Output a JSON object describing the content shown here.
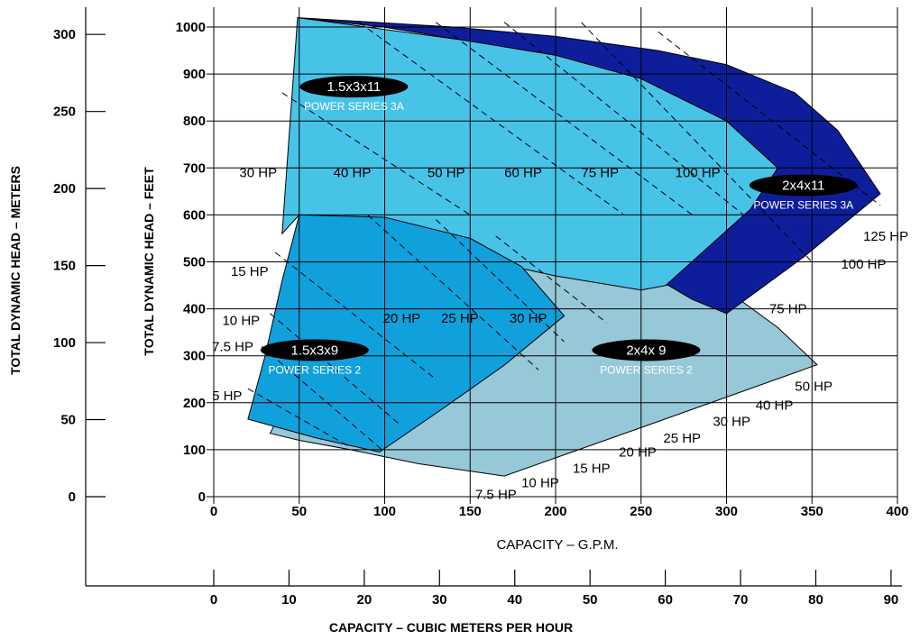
{
  "chart_data": {
    "type": "area",
    "title": "",
    "xlabel": "CAPACITY – G.P.M.",
    "ylabel": "TOTAL DYNAMIC HEAD – FEET",
    "xlim": [
      0,
      400
    ],
    "ylim": [
      0,
      1000
    ],
    "x_ticks": [
      0,
      50,
      100,
      150,
      200,
      250,
      300,
      350,
      400
    ],
    "y_ticks": [
      0,
      100,
      200,
      300,
      400,
      500,
      600,
      700,
      800,
      900,
      1000
    ],
    "grid": true,
    "secondary_x_axis": {
      "label": "CAPACITY – CUBIC METERS PER HOUR",
      "ticks": [
        0,
        10,
        20,
        30,
        40,
        50,
        60,
        70,
        80,
        90
      ],
      "gpm_per_unit": 4.4029
    },
    "secondary_y_axis": {
      "label": "TOTAL DYNAMIC HEAD – METERS",
      "ticks": [
        0,
        50,
        100,
        150,
        200,
        250,
        300
      ],
      "feet_per_unit": 3.2808
    },
    "colors": {
      "curve_2x4x9": "#96c8d8",
      "curve_1_5x3x11": "#48c3e8",
      "curve_2x4x11": "#0e1e9b",
      "curve_1_5x3x9": "#10a0dc",
      "badge": "#000000",
      "grid": "#000000"
    },
    "series": [
      {
        "model": "2x4x 9",
        "subtitle": "POWER SERIES 2",
        "polygon": [
          [
            100,
            600
          ],
          [
            140,
            580
          ],
          [
            200,
            560
          ],
          [
            260,
            520
          ],
          [
            300,
            440
          ],
          [
            330,
            360
          ],
          [
            353,
            281
          ],
          [
            260,
            160
          ],
          [
            170,
            44
          ],
          [
            120,
            70
          ],
          [
            80,
            100
          ],
          [
            50,
            120
          ],
          [
            33,
            135
          ]
        ]
      },
      {
        "model": "1.5x3x11",
        "subtitle": "POWER SERIES 3A",
        "polygon": [
          [
            49,
            1020
          ],
          [
            150,
            970
          ],
          [
            200,
            940
          ],
          [
            250,
            890
          ],
          [
            300,
            800
          ],
          [
            330,
            700
          ],
          [
            314,
            610
          ],
          [
            265,
            450
          ],
          [
            250,
            440
          ],
          [
            200,
            470
          ],
          [
            150,
            510
          ],
          [
            100,
            560
          ],
          [
            50,
            600
          ],
          [
            40,
            560
          ]
        ]
      },
      {
        "model": "2x4x11",
        "subtitle": "POWER SERIES 3A",
        "polygon": [
          [
            49,
            1020
          ],
          [
            140,
            1000
          ],
          [
            200,
            980
          ],
          [
            260,
            950
          ],
          [
            300,
            920
          ],
          [
            340,
            860
          ],
          [
            365,
            780
          ],
          [
            390,
            645
          ],
          [
            345,
            510
          ],
          [
            300,
            390
          ],
          [
            280,
            420
          ],
          [
            265,
            452
          ],
          [
            314,
            612
          ],
          [
            330,
            700
          ],
          [
            300,
            800
          ],
          [
            250,
            890
          ],
          [
            200,
            940
          ],
          [
            150,
            970
          ],
          [
            99,
            1000
          ]
        ]
      },
      {
        "model": "1.5x3x9",
        "subtitle": "POWER SERIES 2",
        "polygon": [
          [
            50,
            600
          ],
          [
            100,
            595
          ],
          [
            150,
            550
          ],
          [
            180,
            490
          ],
          [
            205,
            385
          ],
          [
            170,
            280
          ],
          [
            135,
            190
          ],
          [
            97,
            95
          ],
          [
            60,
            125
          ],
          [
            20,
            165
          ],
          [
            30,
            300
          ],
          [
            40,
            460
          ]
        ]
      }
    ],
    "power_lines": [
      {
        "label": "30 HP",
        "points": [
          [
            40,
            860
          ],
          [
            150,
            600
          ]
        ]
      },
      {
        "label": "40 HP",
        "points": [
          [
            85,
            1010
          ],
          [
            240,
            600
          ]
        ]
      },
      {
        "label": "50 HP",
        "points": [
          [
            130,
            1010
          ],
          [
            280,
            600
          ]
        ]
      },
      {
        "label": "60 HP",
        "points": [
          [
            170,
            1010
          ],
          [
            310,
            600
          ]
        ]
      },
      {
        "label": "75 HP",
        "points": [
          [
            215,
            1010
          ],
          [
            350,
            500
          ]
        ]
      },
      {
        "label": "100 HP",
        "points": [
          [
            260,
            990
          ],
          [
            390,
            620
          ]
        ]
      },
      {
        "label": "15 HP",
        "points": [
          [
            36,
            520
          ],
          [
            130,
            250
          ]
        ]
      },
      {
        "label": "10 HP",
        "points": [
          [
            33,
            390
          ],
          [
            110,
            150
          ]
        ]
      },
      {
        "label": "7.5 HP",
        "points": [
          [
            28,
            320
          ],
          [
            100,
            95
          ]
        ]
      },
      {
        "label": "5 HP",
        "points": [
          [
            20,
            230
          ],
          [
            80,
            105
          ]
        ]
      },
      {
        "label": "20 HP",
        "points": [
          [
            90,
            600
          ],
          [
            190,
            270
          ]
        ]
      },
      {
        "label": "25 HP",
        "points": [
          [
            130,
            590
          ],
          [
            205,
            330
          ]
        ]
      },
      {
        "label": "30 HP",
        "points": [
          [
            165,
            555
          ],
          [
            230,
            370
          ]
        ]
      }
    ],
    "hp_labels": [
      {
        "text": "30 HP",
        "at": [
          15,
          690
        ]
      },
      {
        "text": "40 HP",
        "at": [
          70,
          690
        ]
      },
      {
        "text": "50 HP",
        "at": [
          125,
          690
        ]
      },
      {
        "text": "60 HP",
        "at": [
          170,
          690
        ]
      },
      {
        "text": "75 HP",
        "at": [
          215,
          690
        ]
      },
      {
        "text": "100 HP",
        "at": [
          270,
          690
        ]
      },
      {
        "text": "125 HP",
        "at": [
          380,
          555
        ]
      },
      {
        "text": "100 HP",
        "at": [
          367,
          495
        ]
      },
      {
        "text": "75 HP",
        "at": [
          325,
          400
        ]
      },
      {
        "text": "15 HP",
        "at": [
          10,
          480
        ]
      },
      {
        "text": "10 HP",
        "at": [
          5,
          375
        ]
      },
      {
        "text": "7.5 HP",
        "at": [
          -1,
          320
        ]
      },
      {
        "text": "5 HP",
        "at": [
          -1,
          215
        ]
      },
      {
        "text": "20 HP",
        "at": [
          99,
          380
        ]
      },
      {
        "text": "25 HP",
        "at": [
          133,
          380
        ]
      },
      {
        "text": "30 HP",
        "at": [
          173,
          380
        ]
      },
      {
        "text": "50 HP",
        "at": [
          340,
          235
        ]
      },
      {
        "text": "40 HP",
        "at": [
          317,
          195
        ]
      },
      {
        "text": "30 HP",
        "at": [
          292,
          160
        ]
      },
      {
        "text": "25 HP",
        "at": [
          263,
          125
        ]
      },
      {
        "text": "20 HP",
        "at": [
          237,
          95
        ]
      },
      {
        "text": "15 HP",
        "at": [
          210,
          60
        ]
      },
      {
        "text": "10 HP",
        "at": [
          180,
          30
        ]
      },
      {
        "text": "7.5 HP",
        "at": [
          153,
          5
        ]
      }
    ],
    "badges": [
      {
        "model": "1.5x3x11",
        "subtitle": "POWER SERIES 3A",
        "at": [
          82,
          873
        ]
      },
      {
        "model": "2x4x11",
        "subtitle": "POWER SERIES 3A",
        "at": [
          345,
          663
        ]
      },
      {
        "model": "1.5x3x9",
        "subtitle": "POWER SERIES 2",
        "at": [
          59,
          312
        ]
      },
      {
        "model": "2x4x 9",
        "subtitle": "POWER SERIES 2",
        "at": [
          253,
          312
        ]
      }
    ]
  }
}
